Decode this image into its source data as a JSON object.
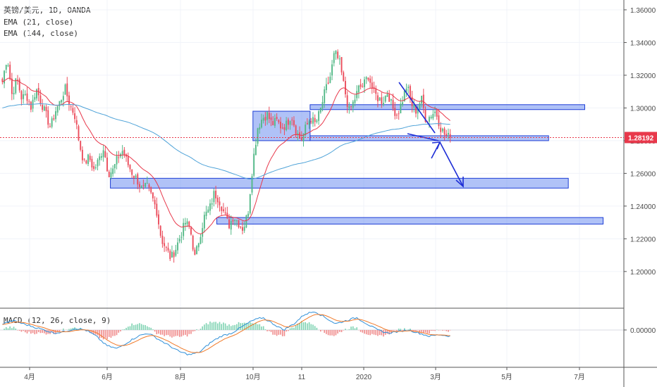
{
  "legend": {
    "symbol": "英镑/美元, 1D, OANDA",
    "ema_fast": "EMA (21, close)",
    "ema_slow": "EMA (144, close)",
    "macd": "MACD (12, 26, close, 9)"
  },
  "colors": {
    "bull": "#53b987",
    "bear": "#eb4d5c",
    "ema_fast": "#e8384b",
    "ema_slow": "#4fa3d8",
    "zone_fill": "#6f8ff0",
    "zone_stroke": "#1f3fd6",
    "arrow": "#1e2ed6",
    "macd_line": "#2f8fd8",
    "signal_line": "#f07a2a",
    "price_tag": "#e8384b"
  },
  "chart_data": {
    "type": "candlestick",
    "instrument": "英镑/美元",
    "timeframe": "1D",
    "source": "OANDA",
    "y_ticks": [
      "1.36000",
      "1.34000",
      "1.32000",
      "1.30000",
      "1.28000",
      "1.26000",
      "1.24000",
      "1.22000",
      "1.20000"
    ],
    "ylim": [
      1.178,
      1.366
    ],
    "x_ticks": [
      "4月",
      "6月",
      "8月",
      "10月",
      "11",
      "2020",
      "3月",
      "5月",
      "7月"
    ],
    "last_price": "1.28192",
    "last_price_value": 1.28192,
    "price_path": [
      1.316,
      1.332,
      1.308,
      1.318,
      1.306,
      1.308,
      1.3,
      1.312,
      1.304,
      1.296,
      1.288,
      1.298,
      1.304,
      1.312,
      1.302,
      1.296,
      1.278,
      1.266,
      1.27,
      1.262,
      1.268,
      1.276,
      1.26,
      1.262,
      1.27,
      1.274,
      1.266,
      1.26,
      1.256,
      1.25,
      1.252,
      1.246,
      1.238,
      1.22,
      1.214,
      1.208,
      1.214,
      1.222,
      1.23,
      1.226,
      1.208,
      1.222,
      1.234,
      1.238,
      1.248,
      1.244,
      1.236,
      1.228,
      1.234,
      1.23,
      1.226,
      1.236,
      1.266,
      1.288,
      1.294,
      1.296,
      1.29,
      1.292,
      1.288,
      1.29,
      1.296,
      1.286,
      1.28,
      1.288,
      1.294,
      1.29,
      1.298,
      1.31,
      1.318,
      1.334,
      1.328,
      1.312,
      1.298,
      1.304,
      1.312,
      1.314,
      1.32,
      1.31,
      1.306,
      1.304,
      1.31,
      1.3,
      1.296,
      1.304,
      1.314,
      1.302,
      1.298,
      1.306,
      1.292,
      1.296,
      1.298,
      1.288,
      1.283,
      1.28192
    ],
    "zones": [
      {
        "from": 1.28,
        "to": 1.298,
        "x0": 0.385,
        "x1": 0.472
      },
      {
        "from": 1.299,
        "to": 1.302,
        "x0": 0.472,
        "x1": 0.89
      },
      {
        "from": 1.28,
        "to": 1.283,
        "x0": 0.472,
        "x1": 0.835
      },
      {
        "from": 1.251,
        "to": 1.257,
        "x0": 0.168,
        "x1": 0.865
      },
      {
        "from": 1.229,
        "to": 1.233,
        "x0": 0.33,
        "x1": 0.918
      }
    ],
    "macd_zero_label": "0.00000",
    "macd_range": [
      -0.024,
      0.014
    ],
    "macd_path": [
      0.004,
      0.006,
      0.004,
      0.002,
      0.0,
      -0.002,
      -0.001,
      0.001,
      0.0,
      -0.004,
      -0.01,
      -0.012,
      -0.008,
      -0.004,
      -0.002,
      -0.006,
      -0.01,
      -0.014,
      -0.016,
      -0.014,
      -0.008,
      -0.004,
      -0.002,
      0.002,
      0.006,
      0.008,
      0.004,
      0.0,
      0.004,
      0.01,
      0.012,
      0.008,
      0.004,
      0.006,
      0.008,
      0.004,
      0.0,
      -0.002,
      -0.001,
      0.0,
      -0.002,
      -0.004,
      -0.003,
      -0.004
    ]
  }
}
